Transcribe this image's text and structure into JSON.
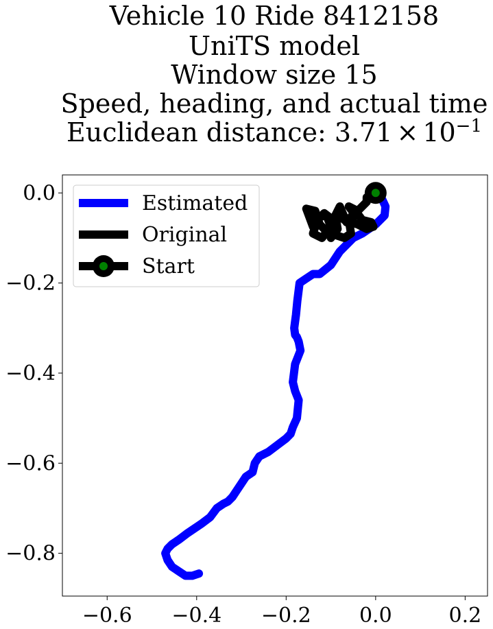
{
  "chart_data": {
    "type": "line",
    "title_lines": [
      "Vehicle 10 Ride 8412158",
      "UniTS model",
      "Window size 15",
      "Speed, heading, and actual time"
    ],
    "title_distance_label": "Euclidean distance: ",
    "title_distance_mantissa": "3.71",
    "title_distance_times": "×",
    "title_distance_base": "10",
    "title_distance_exponent": "−1",
    "xlim": [
      -0.7,
      0.25
    ],
    "ylim": [
      -0.895,
      0.04
    ],
    "xticks": [
      -0.6,
      -0.4,
      -0.2,
      0.0,
      0.2
    ],
    "xtick_labels": [
      "−0.6",
      "−0.4",
      "−0.2",
      "0.0",
      "0.2"
    ],
    "yticks": [
      0.0,
      -0.2,
      -0.4,
      -0.6,
      -0.8
    ],
    "ytick_labels": [
      "0.0",
      "−0.2",
      "−0.4",
      "−0.6",
      "−0.8"
    ],
    "grid": false,
    "legend_position": "upper-left",
    "series": [
      {
        "name": "Estimated",
        "color": "#0000ff",
        "x": [
          0.0,
          0.015,
          0.022,
          0.02,
          0.0,
          -0.03,
          -0.05,
          -0.065,
          -0.08,
          -0.1,
          -0.125,
          -0.14,
          -0.155,
          -0.17,
          -0.175,
          -0.178,
          -0.182,
          -0.18,
          -0.176,
          -0.172,
          -0.168,
          -0.18,
          -0.185,
          -0.18,
          -0.172,
          -0.174,
          -0.176,
          -0.185,
          -0.19,
          -0.2,
          -0.22,
          -0.24,
          -0.26,
          -0.27,
          -0.275,
          -0.29,
          -0.3,
          -0.31,
          -0.32,
          -0.33,
          -0.34,
          -0.355,
          -0.37,
          -0.39,
          -0.405,
          -0.42,
          -0.44,
          -0.455,
          -0.465,
          -0.47,
          -0.465,
          -0.455,
          -0.44,
          -0.425,
          -0.41,
          -0.395
        ],
        "y": [
          0.0,
          -0.015,
          -0.03,
          -0.05,
          -0.07,
          -0.09,
          -0.1,
          -0.115,
          -0.13,
          -0.16,
          -0.18,
          -0.18,
          -0.19,
          -0.2,
          -0.24,
          -0.27,
          -0.3,
          -0.315,
          -0.32,
          -0.33,
          -0.35,
          -0.38,
          -0.42,
          -0.44,
          -0.46,
          -0.48,
          -0.5,
          -0.52,
          -0.535,
          -0.545,
          -0.56,
          -0.575,
          -0.585,
          -0.6,
          -0.62,
          -0.63,
          -0.645,
          -0.66,
          -0.675,
          -0.685,
          -0.69,
          -0.7,
          -0.72,
          -0.735,
          -0.745,
          -0.755,
          -0.77,
          -0.78,
          -0.79,
          -0.8,
          -0.815,
          -0.83,
          -0.84,
          -0.85,
          -0.85,
          -0.845
        ]
      },
      {
        "name": "Original",
        "color": "#000000",
        "x": [
          0.0,
          -0.02,
          -0.02,
          -0.04,
          -0.06,
          -0.045,
          -0.065,
          -0.08,
          -0.09,
          -0.085,
          -0.1,
          -0.095,
          -0.115,
          -0.13,
          -0.14,
          -0.12,
          -0.1,
          -0.11,
          -0.135,
          -0.14,
          -0.155,
          -0.135,
          -0.125,
          -0.11,
          -0.085,
          -0.07,
          -0.055,
          -0.06,
          -0.045,
          -0.03,
          -0.01,
          -0.005,
          -0.02,
          -0.04,
          -0.055,
          -0.07,
          -0.08
        ],
        "y": [
          0.0,
          -0.01,
          -0.02,
          -0.04,
          -0.03,
          -0.05,
          -0.065,
          -0.03,
          -0.05,
          -0.08,
          -0.1,
          -0.06,
          -0.045,
          -0.06,
          -0.09,
          -0.1,
          -0.075,
          -0.05,
          -0.055,
          -0.075,
          -0.035,
          -0.04,
          -0.07,
          -0.085,
          -0.095,
          -0.1,
          -0.09,
          -0.06,
          -0.04,
          -0.06,
          -0.065,
          -0.075,
          -0.08,
          -0.07,
          -0.065,
          -0.06,
          -0.05
        ]
      }
    ],
    "start": {
      "name": "Start",
      "x": 0.0,
      "y": 0.0,
      "outer_color": "#000000",
      "inner_color": "#008000"
    }
  }
}
